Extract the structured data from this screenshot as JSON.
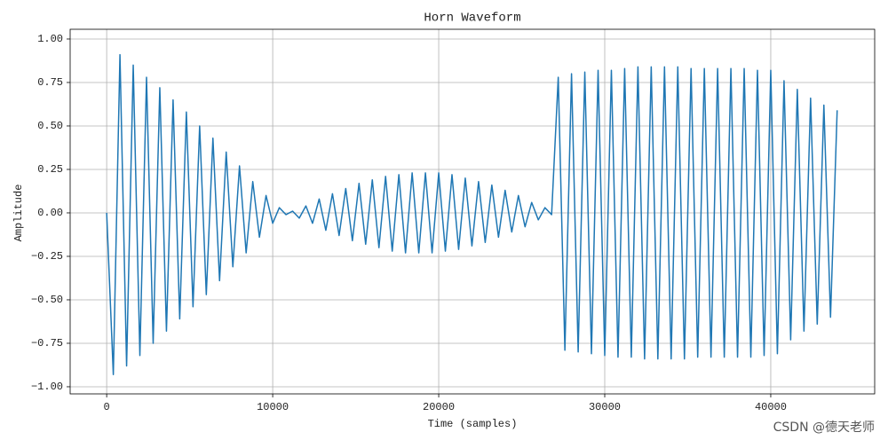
{
  "chart_data": {
    "type": "line",
    "title": "Horn Waveform",
    "x_label": "Time (samples)",
    "y_label": "Amplitude",
    "watermark": "CSDN @德天老师",
    "grid": true,
    "x": [
      0,
      400,
      800,
      1200,
      1600,
      2000,
      2400,
      2800,
      3200,
      3600,
      4000,
      4400,
      4800,
      5200,
      5600,
      6000,
      6400,
      6800,
      7200,
      7600,
      8000,
      8400,
      8800,
      9200,
      9600,
      10000,
      10400,
      10800,
      11200,
      11600,
      12000,
      12400,
      12800,
      13200,
      13600,
      14000,
      14400,
      14800,
      15200,
      15600,
      16000,
      16400,
      16800,
      17200,
      17600,
      18000,
      18400,
      18800,
      19200,
      19600,
      20000,
      20400,
      20800,
      21200,
      21600,
      22000,
      22400,
      22800,
      23200,
      23600,
      24000,
      24400,
      24800,
      25200,
      25600,
      26000,
      26400,
      26800,
      27200,
      27600,
      28000,
      28400,
      28800,
      29200,
      29600,
      30000,
      30400,
      30800,
      31200,
      31600,
      32000,
      32400,
      32800,
      33200,
      33600,
      34000,
      34400,
      34800,
      35200,
      35600,
      36000,
      36400,
      36800,
      37200,
      37600,
      38000,
      38400,
      38800,
      39200,
      39600,
      40000,
      40400,
      40800,
      41200,
      41600,
      42000,
      42400,
      42800,
      43200,
      43600,
      44000
    ],
    "series": [
      {
        "name": "Horn",
        "color": "#1f77b4",
        "values": [
          0,
          -0.93,
          0.91,
          -0.88,
          0.85,
          -0.82,
          0.78,
          -0.75,
          0.72,
          -0.68,
          0.65,
          -0.61,
          0.58,
          -0.54,
          0.5,
          -0.47,
          0.43,
          -0.39,
          0.35,
          -0.31,
          0.27,
          -0.23,
          0.18,
          -0.14,
          0.1,
          -0.06,
          0.03,
          -0.01,
          0.01,
          -0.03,
          0.04,
          -0.06,
          0.08,
          -0.1,
          0.11,
          -0.13,
          0.14,
          -0.16,
          0.17,
          -0.18,
          0.19,
          -0.2,
          0.21,
          -0.22,
          0.22,
          -0.23,
          0.23,
          -0.23,
          0.23,
          -0.23,
          0.23,
          -0.22,
          0.22,
          -0.21,
          0.2,
          -0.19,
          0.18,
          -0.17,
          0.16,
          -0.14,
          0.13,
          -0.11,
          0.1,
          -0.08,
          0.06,
          -0.04,
          0.03,
          -0.01,
          0.78,
          -0.79,
          0.8,
          -0.8,
          0.81,
          -0.81,
          0.82,
          -0.82,
          0.82,
          -0.83,
          0.83,
          -0.83,
          0.84,
          -0.84,
          0.84,
          -0.84,
          0.84,
          -0.84,
          0.84,
          -0.84,
          0.83,
          -0.83,
          0.83,
          -0.83,
          0.83,
          -0.83,
          0.83,
          -0.83,
          0.83,
          -0.83,
          0.82,
          -0.82,
          0.82,
          -0.81,
          0.76,
          -0.73,
          0.71,
          -0.68,
          0.66,
          -0.64,
          0.62,
          -0.6,
          0.59
        ]
      }
    ],
    "xlim": [
      -2200,
      46260
    ],
    "ylim": [
      -1.041,
      1.056
    ],
    "xticks": [
      0,
      10000,
      20000,
      30000,
      40000
    ],
    "yticks": [
      {
        "value": -1,
        "label": "−1.00"
      },
      {
        "value": -0.75,
        "label": "−0.75"
      },
      {
        "value": -0.5,
        "label": "−0.50"
      },
      {
        "value": -0.25,
        "label": "−0.25"
      },
      {
        "value": 0,
        "label": "0.00"
      },
      {
        "value": 0.25,
        "label": "0.25"
      },
      {
        "value": 0.5,
        "label": "0.50"
      },
      {
        "value": 0.75,
        "label": "0.75"
      },
      {
        "value": 1,
        "label": "1.00"
      }
    ]
  }
}
